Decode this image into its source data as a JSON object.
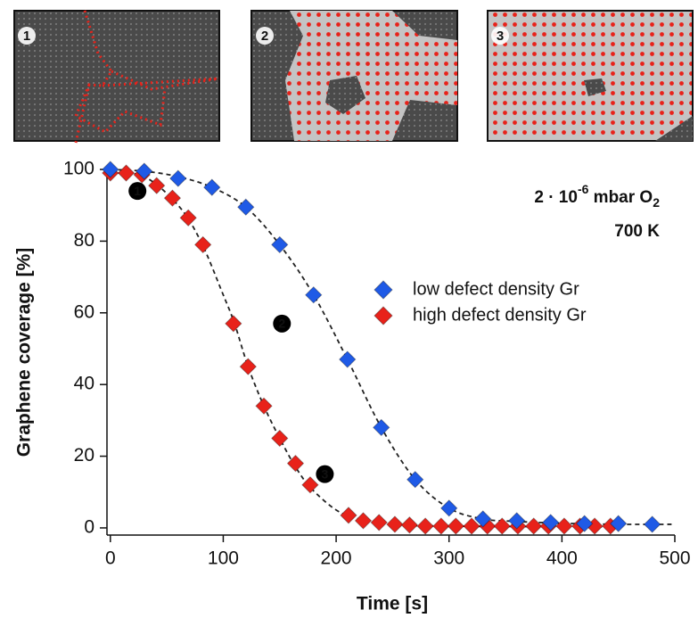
{
  "insets": [
    {
      "label": "1"
    },
    {
      "label": "2"
    },
    {
      "label": "3"
    }
  ],
  "chart_data": {
    "type": "scatter",
    "xlabel": "Time [s]",
    "ylabel": "Graphene coverage [%]",
    "xlim": [
      -3,
      500
    ],
    "ylim": [
      -2,
      101
    ],
    "xticks": [
      0,
      100,
      200,
      300,
      400,
      500
    ],
    "yticks": [
      0,
      20,
      40,
      60,
      80,
      100
    ],
    "annotation": {
      "base": "2 · 10",
      "exponent": "-6",
      "unit": " mbar O",
      "subscript": "2",
      "temperature": "700 K"
    },
    "markers": [
      {
        "label": "1",
        "x": 24,
        "y": 94
      },
      {
        "label": "2",
        "x": 152,
        "y": 57
      },
      {
        "label": "3",
        "x": 190,
        "y": 15
      }
    ],
    "series": [
      {
        "name": "low defect density Gr",
        "color": "#1f5ae6",
        "x": [
          0,
          30,
          60,
          90,
          120,
          150,
          180,
          210,
          240,
          270,
          300,
          330,
          360,
          390,
          420,
          450,
          480
        ],
        "values": [
          100,
          99.5,
          97.5,
          95,
          89.5,
          79,
          65,
          47,
          28,
          13.5,
          5.5,
          2.5,
          2,
          1.5,
          1.2,
          1.2,
          1
        ]
      },
      {
        "name": "high defect density Gr",
        "color": "#e8221a",
        "x": [
          0,
          14,
          28,
          41,
          55,
          69,
          82,
          109,
          122,
          136,
          150,
          164,
          177,
          211,
          224,
          238,
          252,
          265,
          279,
          293,
          306,
          320,
          334,
          347,
          361,
          375,
          388,
          402,
          416,
          429,
          443
        ],
        "values": [
          99,
          99,
          98.5,
          95.5,
          92,
          86.5,
          79,
          57,
          45,
          34,
          25,
          18,
          12,
          3.5,
          2,
          1.5,
          1,
          0.8,
          0.5,
          0.5,
          0.5,
          0.5,
          0.5,
          0.5,
          0.5,
          0.5,
          0.5,
          0.5,
          0.5,
          0.5,
          0.5
        ]
      }
    ],
    "fits": [
      {
        "color": "#222",
        "x": [
          0,
          30,
          60,
          90,
          120,
          150,
          180,
          210,
          240,
          270,
          300,
          330,
          360,
          400,
          450,
          500
        ],
        "values": [
          100,
          99.5,
          98,
          95,
          89.5,
          79,
          65,
          47,
          28,
          13.5,
          5.5,
          2.5,
          1.8,
          1.3,
          1,
          1
        ]
      },
      {
        "color": "#222",
        "x": [
          0,
          30,
          60,
          80,
          100,
          110,
          122,
          136,
          150,
          164,
          178,
          200,
          220,
          250,
          300,
          450
        ],
        "values": [
          99,
          98,
          90,
          80,
          65,
          57,
          45,
          34,
          25,
          17,
          11,
          5,
          2.5,
          1,
          0.5,
          0.3
        ]
      }
    ]
  }
}
